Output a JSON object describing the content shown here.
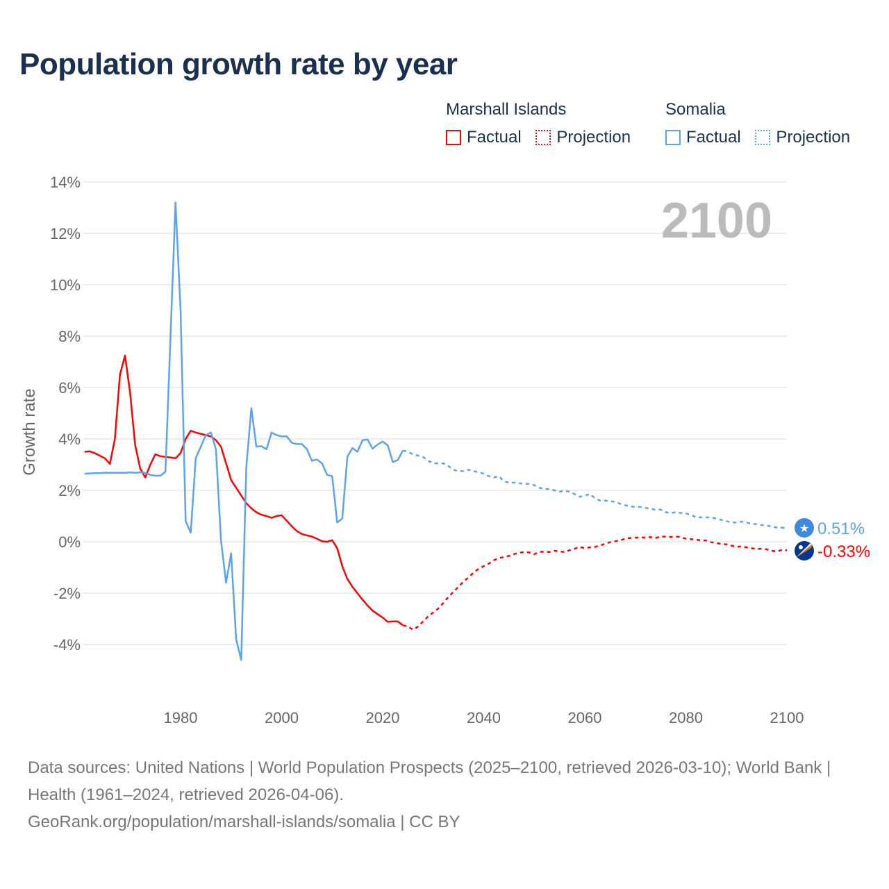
{
  "chart_data": {
    "type": "line",
    "title": "Population growth rate by year",
    "xlabel": "",
    "ylabel": "Growth rate",
    "xlim": [
      1961,
      2100
    ],
    "ylim": [
      -5,
      14
    ],
    "yticks": [
      "14%",
      "12%",
      "10%",
      "8%",
      "6%",
      "4%",
      "2%",
      "0%",
      "-2%",
      "-4%"
    ],
    "ytick_values": [
      14,
      12,
      10,
      8,
      6,
      4,
      2,
      0,
      -2,
      -4
    ],
    "xticks": [
      "1980",
      "2000",
      "2020",
      "2040",
      "2060",
      "2080",
      "2100"
    ],
    "xtick_values": [
      1980,
      2000,
      2020,
      2040,
      2060,
      2080,
      2100
    ],
    "grid": true,
    "year_label": "2100",
    "legend_placement": "top-right",
    "series": [
      {
        "name": "Marshall Islands",
        "color": "#ff0000",
        "end_label": "-0.33%",
        "flag": "marshall-islands-flag",
        "factual": {
          "label": "Factual",
          "start_year": 1961,
          "values": [
            3.5,
            3.52,
            3.45,
            3.35,
            3.25,
            3.03,
            4.0,
            6.5,
            7.25,
            5.8,
            3.78,
            2.85,
            2.5,
            3.0,
            3.4,
            3.33,
            3.3,
            3.28,
            3.25,
            3.45,
            4.0,
            4.32,
            4.25,
            4.2,
            4.15,
            4.1,
            3.95,
            3.7,
            3.05,
            2.4,
            2.1,
            1.8,
            1.5,
            1.3,
            1.15,
            1.05,
            1.0,
            0.93,
            1.0,
            1.03,
            0.82,
            0.6,
            0.42,
            0.3,
            0.25,
            0.2,
            0.12,
            0.02,
            0.0,
            0.06,
            -0.25,
            -0.95,
            -1.45,
            -1.75,
            -2.0,
            -2.25,
            -2.48,
            -2.68,
            -2.82,
            -2.95,
            -3.12,
            -3.1,
            -3.1,
            -3.25
          ]
        },
        "projection": {
          "label": "Projection",
          "start_year": 2024,
          "values": [
            -3.25,
            -3.3,
            -3.42,
            -3.3,
            -3.1,
            -2.9,
            -2.75,
            -2.6,
            -2.38,
            -2.15,
            -1.95,
            -1.75,
            -1.55,
            -1.38,
            -1.2,
            -1.05,
            -0.95,
            -0.85,
            -0.72,
            -0.63,
            -0.6,
            -0.55,
            -0.48,
            -0.43,
            -0.4,
            -0.42,
            -0.48,
            -0.4,
            -0.38,
            -0.4,
            -0.35,
            -0.38,
            -0.4,
            -0.33,
            -0.27,
            -0.2,
            -0.25,
            -0.22,
            -0.2,
            -0.15,
            -0.08,
            -0.02,
            0.02,
            0.05,
            0.12,
            0.15,
            0.16,
            0.17,
            0.16,
            0.18,
            0.15,
            0.2,
            0.2,
            0.18,
            0.2,
            0.18,
            0.12,
            0.1,
            0.08,
            0.05,
            0.05,
            -0.02,
            -0.05,
            -0.08,
            -0.1,
            -0.15,
            -0.2,
            -0.18,
            -0.22,
            -0.25,
            -0.28,
            -0.27,
            -0.3,
            -0.35,
            -0.38,
            -0.32,
            -0.33
          ]
        }
      },
      {
        "name": "Somalia",
        "color": "#5ba4ec",
        "end_label": "0.51%",
        "flag": "somalia-flag",
        "factual": {
          "label": "Factual",
          "start_year": 1961,
          "values": [
            2.65,
            2.66,
            2.67,
            2.67,
            2.68,
            2.68,
            2.68,
            2.68,
            2.68,
            2.7,
            2.68,
            2.7,
            2.68,
            2.6,
            2.57,
            2.57,
            2.72,
            8.0,
            13.2,
            9.0,
            0.8,
            0.35,
            3.25,
            3.7,
            4.15,
            4.25,
            3.6,
            0.05,
            -1.6,
            -0.45,
            -3.8,
            -4.6,
            2.9,
            5.2,
            3.7,
            3.72,
            3.6,
            4.25,
            4.15,
            4.1,
            4.1,
            3.85,
            3.8,
            3.8,
            3.6,
            3.15,
            3.2,
            3.05,
            2.6,
            2.55,
            0.75,
            0.9,
            3.3,
            3.65,
            3.5,
            3.95,
            3.98,
            3.62,
            3.78,
            3.9,
            3.75,
            3.1,
            3.18,
            3.55
          ]
        },
        "projection": {
          "label": "Projection",
          "start_year": 2024,
          "values": [
            3.55,
            3.5,
            3.4,
            3.35,
            3.3,
            3.15,
            3.05,
            3.05,
            3.05,
            2.95,
            2.8,
            2.75,
            2.75,
            2.8,
            2.75,
            2.7,
            2.65,
            2.55,
            2.5,
            2.55,
            2.35,
            2.3,
            2.3,
            2.28,
            2.25,
            2.25,
            2.2,
            2.1,
            2.05,
            2.05,
            2.0,
            1.95,
            1.98,
            1.95,
            1.85,
            1.75,
            1.8,
            1.85,
            1.7,
            1.6,
            1.6,
            1.58,
            1.55,
            1.48,
            1.42,
            1.38,
            1.35,
            1.35,
            1.32,
            1.28,
            1.25,
            1.25,
            1.15,
            1.12,
            1.15,
            1.12,
            1.1,
            1.05,
            0.95,
            0.95,
            0.95,
            0.95,
            0.9,
            0.85,
            0.8,
            0.75,
            0.75,
            0.78,
            0.75,
            0.7,
            0.68,
            0.65,
            0.63,
            0.6,
            0.55,
            0.55,
            0.51
          ]
        }
      }
    ]
  },
  "footer": {
    "sources": "Data sources: United Nations | World Population Prospects (2025–2100, retrieved 2026-03-10); World Bank | Health (1961–2024, retrieved 2026-04-06).",
    "credit": "GeoRank.org/population/marshall-islands/somalia | CC BY"
  }
}
